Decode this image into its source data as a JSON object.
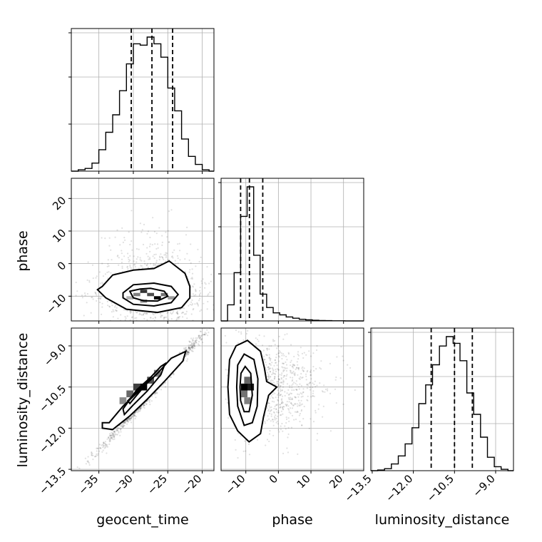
{
  "chart_data": {
    "type": "corner",
    "parameters": [
      "geocent_time",
      "phase",
      "luminosity_distance"
    ],
    "axis_labels": {
      "x": [
        "geocent_time",
        "phase",
        "luminosity_distance"
      ],
      "y": [
        "",
        "phase",
        "luminosity_distance"
      ]
    },
    "ranges": {
      "geocent_time": [
        -39.0,
        -18.3
      ],
      "phase": [
        -17.6,
        26.2
      ],
      "luminosity_distance": [
        -13.55,
        -8.35
      ]
    },
    "ticks": {
      "geocent_time": {
        "values": [
          -35,
          -30,
          -25,
          -20
        ],
        "labels": [
          "−35",
          "−30",
          "−25",
          "−20"
        ]
      },
      "phase": {
        "values": [
          -10,
          0,
          10,
          20
        ],
        "labels": [
          "−10",
          "0",
          "10",
          "20"
        ]
      },
      "luminosity_distance": {
        "values": [
          -13.5,
          -12.0,
          -10.5,
          -9.0
        ],
        "labels": [
          "−13.5",
          "−12.0",
          "−10.5",
          "−9.0"
        ]
      }
    },
    "histograms": {
      "geocent_time": {
        "bin_edges": [
          -39.0,
          -38.0,
          -37.0,
          -36.0,
          -35.0,
          -34.0,
          -33.0,
          -32.0,
          -31.0,
          -30.0,
          -29.0,
          -28.0,
          -27.0,
          -26.0,
          -25.0,
          -24.0,
          -23.0,
          -22.0,
          -21.0,
          -20.0,
          -19.0,
          -18.3
        ],
        "counts": [
          0.0,
          0.01,
          0.02,
          0.06,
          0.16,
          0.29,
          0.42,
          0.6,
          0.8,
          0.95,
          0.94,
          1.0,
          0.95,
          0.85,
          0.62,
          0.45,
          0.24,
          0.11,
          0.05,
          0.01,
          0.0
        ],
        "quantiles": [
          -30.3,
          -27.3,
          -24.3
        ]
      },
      "phase": {
        "bin_edges": [
          -17.6,
          -15.6,
          -13.6,
          -11.6,
          -9.6,
          -7.6,
          -5.6,
          -3.6,
          -1.6,
          0.4,
          2.4,
          4.4,
          6.4,
          8.4,
          10.4,
          12.4,
          14.4,
          16.4,
          18.4,
          20.4,
          22.4,
          24.4,
          26.2
        ],
        "counts": [
          0.0,
          0.12,
          0.36,
          0.78,
          1.0,
          0.49,
          0.2,
          0.1,
          0.06,
          0.045,
          0.03,
          0.02,
          0.012,
          0.008,
          0.005,
          0.003,
          0.002,
          0.001,
          0.001,
          0.0,
          0.0,
          0.0
        ],
        "quantiles": [
          -11.6,
          -8.9,
          -4.8
        ]
      },
      "luminosity_distance": {
        "bin_edges": [
          -13.55,
          -13.3,
          -13.05,
          -12.8,
          -12.55,
          -12.3,
          -12.05,
          -11.8,
          -11.55,
          -11.3,
          -11.05,
          -10.8,
          -10.55,
          -10.3,
          -10.05,
          -9.8,
          -9.55,
          -9.3,
          -9.05,
          -8.8,
          -8.55,
          -8.35
        ],
        "counts": [
          0.0,
          0.005,
          0.015,
          0.05,
          0.11,
          0.2,
          0.32,
          0.5,
          0.64,
          0.79,
          0.93,
          1.0,
          0.95,
          0.82,
          0.58,
          0.42,
          0.25,
          0.1,
          0.03,
          0.01,
          0.0
        ],
        "quantiles": [
          -11.35,
          -10.5,
          -9.85
        ]
      }
    },
    "pairs": [
      {
        "x": "geocent_time",
        "y": "phase",
        "density_cells": [
          {
            "x": -29.5,
            "y": -9.5,
            "v": 0.5
          },
          {
            "x": -28.5,
            "y": -8.5,
            "v": 0.8
          },
          {
            "x": -27.5,
            "y": -9.5,
            "v": 0.7
          },
          {
            "x": -26.5,
            "y": -10.5,
            "v": 1.0
          },
          {
            "x": -25.5,
            "y": -9.5,
            "v": 0.55
          },
          {
            "x": -28.5,
            "y": -11.5,
            "v": 0.45
          },
          {
            "x": -24.5,
            "y": -10.5,
            "v": 0.4
          },
          {
            "x": -30.5,
            "y": -10.5,
            "v": 0.3
          }
        ],
        "contours": [
          [
            [
              -34.5,
              -7.0
            ],
            [
              -33.0,
              -3.5
            ],
            [
              -30.0,
              -2.0
            ],
            [
              -27.0,
              -1.5
            ],
            [
              -24.8,
              0.8
            ],
            [
              -22.5,
              -3.0
            ],
            [
              -21.8,
              -7.0
            ],
            [
              -21.8,
              -10.5
            ],
            [
              -23.0,
              -13.5
            ],
            [
              -26.5,
              -15.0
            ],
            [
              -31.0,
              -14.0
            ],
            [
              -34.0,
              -10.5
            ],
            [
              -35.2,
              -8.0
            ]
          ],
          [
            [
              -31.5,
              -9.0
            ],
            [
              -30.0,
              -6.5
            ],
            [
              -27.0,
              -6.0
            ],
            [
              -24.5,
              -7.0
            ],
            [
              -23.5,
              -9.5
            ],
            [
              -24.5,
              -12.0
            ],
            [
              -27.0,
              -13.0
            ],
            [
              -30.0,
              -12.5
            ],
            [
              -31.5,
              -10.5
            ]
          ],
          [
            [
              -30.5,
              -8.5
            ],
            [
              -29.0,
              -7.8
            ],
            [
              -27.5,
              -7.6
            ],
            [
              -25.5,
              -8.5
            ],
            [
              -25.0,
              -10.0
            ],
            [
              -26.5,
              -11.5
            ],
            [
              -28.5,
              -11.4
            ],
            [
              -30.0,
              -10.5
            ]
          ]
        ],
        "scatter_count": 1400,
        "scatter_center": [
          -27.5,
          -8.5
        ],
        "scatter_spread": [
          3.6,
          6.5
        ]
      },
      {
        "x": "geocent_time",
        "y": "luminosity_distance",
        "density_cells": [
          {
            "x": -31.5,
            "y": -11.0,
            "v": 0.45
          },
          {
            "x": -30.5,
            "y": -10.75,
            "v": 0.6
          },
          {
            "x": -29.5,
            "y": -10.5,
            "v": 0.75
          },
          {
            "x": -28.5,
            "y": -10.5,
            "v": 1.0
          },
          {
            "x": -27.5,
            "y": -10.25,
            "v": 0.7
          },
          {
            "x": -26.5,
            "y": -10.0,
            "v": 0.5
          }
        ],
        "contours": [
          [
            [
              -34.5,
              -11.8
            ],
            [
              -33.5,
              -11.8
            ],
            [
              -31.5,
              -11.2
            ],
            [
              -29.0,
              -10.6
            ],
            [
              -26.5,
              -10.0
            ],
            [
              -24.5,
              -9.45
            ],
            [
              -22.4,
              -9.2
            ],
            [
              -22.8,
              -9.55
            ],
            [
              -25.5,
              -10.3
            ],
            [
              -28.0,
              -10.95
            ],
            [
              -30.5,
              -11.55
            ],
            [
              -33.0,
              -12.05
            ],
            [
              -34.5,
              -12.0
            ]
          ],
          [
            [
              -31.5,
              -11.3
            ],
            [
              -29.5,
              -10.6
            ],
            [
              -27.5,
              -10.15
            ],
            [
              -26.0,
              -9.75
            ],
            [
              -25.4,
              -9.65
            ],
            [
              -26.0,
              -10.05
            ],
            [
              -28.0,
              -10.65
            ],
            [
              -30.0,
              -11.15
            ],
            [
              -31.3,
              -11.5
            ]
          ],
          [
            [
              -30.8,
              -11.0
            ],
            [
              -29.0,
              -10.55
            ],
            [
              -27.5,
              -10.2
            ],
            [
              -28.5,
              -10.5
            ],
            [
              -30.5,
              -11.1
            ]
          ]
        ],
        "scatter_count": 1400,
        "scatter_center": [
          -27.0,
          -10.55
        ],
        "scatter_spread": [
          3.6,
          0.55
        ],
        "scatter_slope": 0.28
      },
      {
        "x": "phase",
        "y": "luminosity_distance",
        "density_cells": [
          {
            "x": -10.5,
            "y": -10.75,
            "v": 0.55
          },
          {
            "x": -10.5,
            "y": -10.5,
            "v": 1.0
          },
          {
            "x": -8.5,
            "y": -10.5,
            "v": 0.9
          },
          {
            "x": -9.5,
            "y": -10.25,
            "v": 0.6
          },
          {
            "x": -9.5,
            "y": -11.0,
            "v": 0.5
          }
        ],
        "contours": [
          [
            [
              -15.5,
              -10.5
            ],
            [
              -15.0,
              -9.5
            ],
            [
              -13.0,
              -9.0
            ],
            [
              -9.5,
              -8.8
            ],
            [
              -5.5,
              -9.2
            ],
            [
              -4.3,
              -9.8
            ],
            [
              -3.6,
              -10.3
            ],
            [
              -0.5,
              -10.5
            ],
            [
              -3.0,
              -10.8
            ],
            [
              -4.6,
              -11.6
            ],
            [
              -5.5,
              -12.2
            ],
            [
              -9.0,
              -12.5
            ],
            [
              -12.5,
              -12.1
            ],
            [
              -15.0,
              -11.5
            ]
          ],
          [
            [
              -12.8,
              -10.5
            ],
            [
              -12.5,
              -9.7
            ],
            [
              -10.5,
              -9.3
            ],
            [
              -7.5,
              -9.5
            ],
            [
              -6.3,
              -10.2
            ],
            [
              -6.5,
              -11.2
            ],
            [
              -8.0,
              -11.8
            ],
            [
              -10.5,
              -11.9
            ],
            [
              -12.5,
              -11.2
            ]
          ],
          [
            [
              -11.8,
              -10.5
            ],
            [
              -11.5,
              -10.0
            ],
            [
              -10.2,
              -9.75
            ],
            [
              -8.5,
              -10.0
            ],
            [
              -8.0,
              -10.8
            ],
            [
              -9.0,
              -11.4
            ],
            [
              -10.5,
              -11.4
            ],
            [
              -11.6,
              -11.0
            ]
          ]
        ],
        "scatter_count": 1400,
        "scatter_center": [
          -7.0,
          -10.5
        ],
        "scatter_spread": [
          6.0,
          0.8
        ]
      }
    ],
    "grid": true
  }
}
